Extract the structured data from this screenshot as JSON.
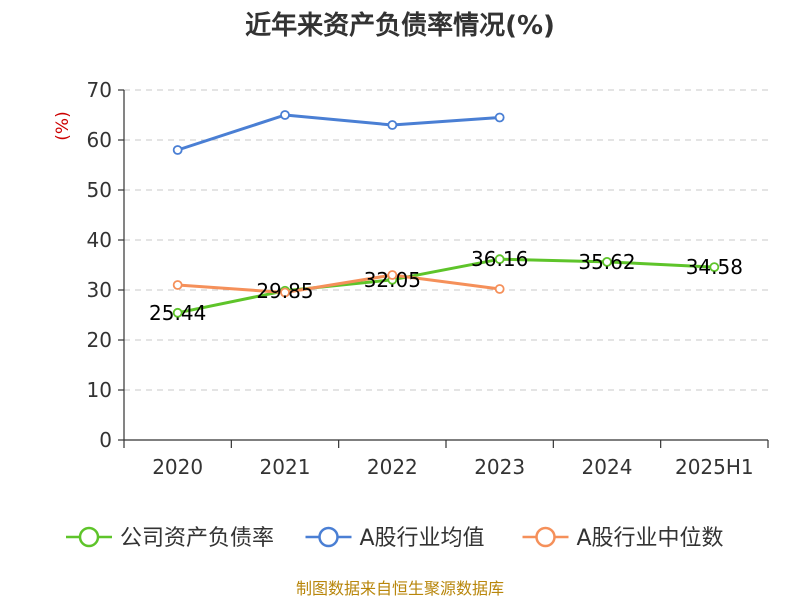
{
  "title": "近年来资产负债率情况(%)",
  "unit_label": "(%)",
  "source": "制图数据来自恒生聚源数据库",
  "chart_data": {
    "type": "line",
    "title": "近年来资产负债率情况(%)",
    "ylabel": "(%)",
    "xlabel": "",
    "categories": [
      "2020",
      "2021",
      "2022",
      "2023",
      "2024",
      "2025H1"
    ],
    "ylim": [
      0,
      70
    ],
    "yticks": [
      0,
      10,
      20,
      30,
      40,
      50,
      60,
      70
    ],
    "grid": true,
    "legend_position": "bottom",
    "series": [
      {
        "name": "公司资产负债率",
        "color": "#5ec42a",
        "values": [
          25.44,
          29.85,
          32.05,
          36.16,
          35.62,
          34.58
        ],
        "labels": [
          "25.44",
          "29.85",
          "32.05",
          "36.16",
          "35.62",
          "34.58"
        ]
      },
      {
        "name": "A股行业均值",
        "color": "#4a7fd4",
        "values": [
          58.0,
          65.0,
          63.0,
          64.5,
          null,
          null
        ],
        "labels": null
      },
      {
        "name": "A股行业中位数",
        "color": "#f5905a",
        "values": [
          31.0,
          29.5,
          33.0,
          30.2,
          null,
          null
        ],
        "labels": null
      }
    ]
  }
}
